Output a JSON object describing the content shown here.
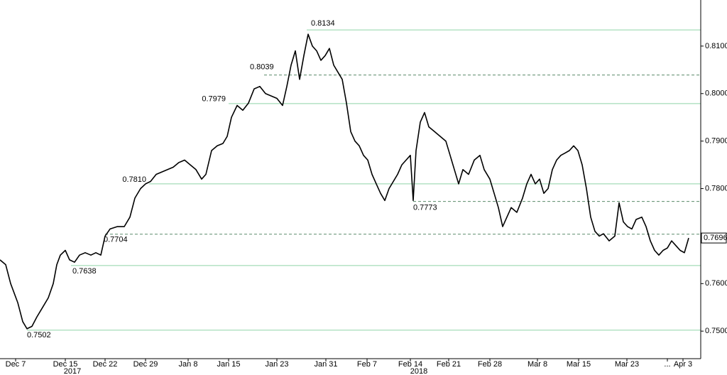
{
  "chart_data": {
    "type": "line",
    "x": [
      0,
      8,
      15,
      25,
      32,
      38,
      45,
      52,
      60,
      68,
      75,
      80,
      85,
      92,
      98,
      105,
      112,
      120,
      128,
      135,
      142,
      148,
      155,
      165,
      175,
      183,
      190,
      198,
      205,
      212,
      220,
      228,
      236,
      244,
      252,
      260,
      268,
      276,
      284,
      290,
      298,
      306,
      314,
      320,
      326,
      334,
      342,
      350,
      358,
      366,
      374,
      382,
      390,
      398,
      404,
      410,
      416,
      422,
      428,
      434,
      440,
      446,
      452,
      458,
      464,
      470,
      476,
      482,
      488,
      494,
      500,
      506,
      512,
      518,
      524,
      530,
      536,
      542,
      548,
      554,
      560,
      566,
      572,
      578,
      582,
      586,
      592,
      598,
      604,
      612,
      620,
      628,
      634,
      640,
      646,
      652,
      660,
      668,
      676,
      682,
      690,
      696,
      702,
      708,
      714,
      720,
      728,
      736,
      742,
      748,
      754,
      760,
      766,
      772,
      778,
      784,
      790,
      796,
      802,
      808,
      814,
      820,
      826,
      832,
      838,
      844,
      850,
      858,
      866,
      872,
      878,
      884,
      890,
      896,
      904,
      910,
      916,
      922,
      928,
      934,
      940,
      946,
      952,
      958,
      964,
      970
    ],
    "series": [
      {
        "color": "#000000",
        "values": [
          0.765,
          0.764,
          0.76,
          0.756,
          0.752,
          0.7505,
          0.751,
          0.753,
          0.755,
          0.757,
          0.76,
          0.764,
          0.766,
          0.767,
          0.765,
          0.7645,
          0.766,
          0.7665,
          0.766,
          0.7665,
          0.766,
          0.77,
          0.7715,
          0.772,
          0.772,
          0.774,
          0.778,
          0.78,
          0.781,
          0.7815,
          0.783,
          0.7835,
          0.784,
          0.7845,
          0.7855,
          0.786,
          0.785,
          0.784,
          0.782,
          0.783,
          0.788,
          0.789,
          0.7895,
          0.791,
          0.795,
          0.7975,
          0.7965,
          0.798,
          0.801,
          0.8015,
          0.8,
          0.7995,
          0.799,
          0.7975,
          0.8015,
          0.806,
          0.809,
          0.803,
          0.808,
          0.8125,
          0.81,
          0.809,
          0.807,
          0.808,
          0.8095,
          0.806,
          0.8045,
          0.803,
          0.798,
          0.792,
          0.79,
          0.789,
          0.787,
          0.786,
          0.783,
          0.781,
          0.779,
          0.7775,
          0.78,
          0.7815,
          0.783,
          0.785,
          0.786,
          0.787,
          0.7775,
          0.788,
          0.794,
          0.796,
          0.793,
          0.792,
          0.791,
          0.79,
          0.787,
          0.784,
          0.781,
          0.784,
          0.783,
          0.786,
          0.787,
          0.784,
          0.782,
          0.779,
          0.776,
          0.772,
          0.774,
          0.776,
          0.775,
          0.778,
          0.781,
          0.783,
          0.781,
          0.782,
          0.779,
          0.78,
          0.784,
          0.786,
          0.787,
          0.7875,
          0.788,
          0.789,
          0.788,
          0.785,
          0.78,
          0.774,
          0.771,
          0.77,
          0.7705,
          0.769,
          0.77,
          0.777,
          0.773,
          0.772,
          0.7715,
          0.7735,
          0.774,
          0.772,
          0.769,
          0.767,
          0.766,
          0.767,
          0.7675,
          0.769,
          0.768,
          0.767,
          0.7665,
          0.7696
        ]
      }
    ],
    "xlim": [
      0,
      987
    ],
    "xticks": [
      {
        "value": 22,
        "label": "Dec 7"
      },
      {
        "value": 92,
        "label": "Dec 15"
      },
      {
        "value": 148,
        "label": "Dec 22"
      },
      {
        "value": 205,
        "label": "Dec 29"
      },
      {
        "value": 265,
        "label": "Jan 8"
      },
      {
        "value": 322,
        "label": "Jan 15"
      },
      {
        "value": 390,
        "label": "Jan 23"
      },
      {
        "value": 459,
        "label": "Jan 31"
      },
      {
        "value": 517,
        "label": "Feb 7"
      },
      {
        "value": 578,
        "label": "Feb 14"
      },
      {
        "value": 632,
        "label": "Feb 21"
      },
      {
        "value": 690,
        "label": "Feb 28"
      },
      {
        "value": 757,
        "label": "Mar 8"
      },
      {
        "value": 815,
        "label": "Mar 15"
      },
      {
        "value": 883,
        "label": "Mar 23"
      },
      {
        "value": 940,
        "label": "..."
      },
      {
        "value": 962,
        "label": "Apr 3"
      }
    ],
    "years": [
      {
        "value": 102,
        "label": "2017"
      },
      {
        "value": 590,
        "label": "2018"
      }
    ],
    "ylim": [
      0.7442,
      0.8197
    ],
    "yticks": [
      {
        "value": 0.75,
        "label": "0.7500"
      },
      {
        "value": 0.76,
        "label": "0.7600"
      },
      {
        "value": 0.77,
        "label": "0.7700"
      },
      {
        "value": 0.78,
        "label": "0.7800"
      },
      {
        "value": 0.79,
        "label": "0.7900"
      },
      {
        "value": 0.8,
        "label": "0.8000"
      },
      {
        "value": 0.81,
        "label": "0.8100"
      }
    ],
    "levels": [
      {
        "value": 0.8134,
        "label": "0.8134",
        "x": 432,
        "dashed": false
      },
      {
        "value": 0.8039,
        "label": "0.8039",
        "x": 372,
        "dashed": true
      },
      {
        "value": 0.7979,
        "label": "0.7979",
        "x": 322,
        "dashed": false
      },
      {
        "value": 0.781,
        "label": "0.7810",
        "x": 210,
        "dashed": false
      },
      {
        "value": 0.7773,
        "label": "0.7773",
        "x": 582,
        "dashed": true
      },
      {
        "value": 0.7704,
        "label": "0.7704",
        "x": 148,
        "dashed": true
      },
      {
        "value": 0.7638,
        "label": "0.7638",
        "x": 100,
        "dashed": false
      },
      {
        "value": 0.7502,
        "label": "0.7502",
        "x": 38,
        "dashed": false
      }
    ],
    "last": {
      "value": 0.7696,
      "label": "0.7696"
    }
  }
}
